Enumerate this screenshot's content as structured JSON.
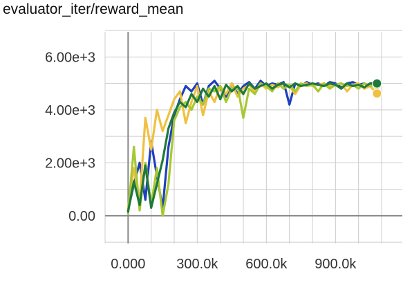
{
  "chart_data": {
    "type": "line",
    "title": "evaluator_iter/reward_mean",
    "xlabel": "",
    "ylabel": "",
    "xlim": [
      -100000,
      1190000
    ],
    "ylim": [
      -1050,
      6950
    ],
    "x_ticks": [
      0,
      300000,
      600000,
      900000
    ],
    "x_tick_labels": [
      "0.000",
      "300.0k",
      "600.0k",
      "900.0k"
    ],
    "y_ticks": [
      0,
      2000,
      4000,
      6000
    ],
    "y_tick_labels": [
      "0.00",
      "2.00e+3",
      "4.00e+3",
      "6.00e+3"
    ],
    "grid": true,
    "legend": "none",
    "series": [
      {
        "color": "#1f3fbf",
        "values": [
          [
            0,
            200
          ],
          [
            25000,
            1200
          ],
          [
            50000,
            2000
          ],
          [
            75000,
            600
          ],
          [
            100000,
            2800
          ],
          [
            125000,
            1500
          ],
          [
            150000,
            300
          ],
          [
            175000,
            2600
          ],
          [
            200000,
            3800
          ],
          [
            225000,
            4400
          ],
          [
            250000,
            4900
          ],
          [
            275000,
            4700
          ],
          [
            300000,
            5000
          ],
          [
            325000,
            4200
          ],
          [
            350000,
            4900
          ],
          [
            375000,
            5100
          ],
          [
            400000,
            4800
          ],
          [
            425000,
            4500
          ],
          [
            450000,
            5000
          ],
          [
            475000,
            4600
          ],
          [
            500000,
            4900
          ],
          [
            525000,
            5050
          ],
          [
            550000,
            4800
          ],
          [
            575000,
            5100
          ],
          [
            600000,
            4900
          ],
          [
            625000,
            5000
          ],
          [
            650000,
            4950
          ],
          [
            675000,
            5050
          ],
          [
            700000,
            4200
          ],
          [
            725000,
            5000
          ],
          [
            750000,
            4900
          ],
          [
            775000,
            5050
          ],
          [
            800000,
            4950
          ],
          [
            825000,
            5000
          ],
          [
            850000,
            4900
          ],
          [
            875000,
            5050
          ],
          [
            900000,
            5000
          ],
          [
            925000,
            4850
          ],
          [
            950000,
            5000
          ],
          [
            975000,
            5050
          ],
          [
            1000000,
            4950
          ],
          [
            1025000,
            5000
          ],
          [
            1050000,
            4900
          ],
          [
            1080000,
            5000
          ]
        ]
      },
      {
        "color": "#f0c040",
        "values": [
          [
            0,
            300
          ],
          [
            25000,
            1800
          ],
          [
            50000,
            500
          ],
          [
            75000,
            3700
          ],
          [
            100000,
            2500
          ],
          [
            125000,
            4000
          ],
          [
            150000,
            3200
          ],
          [
            175000,
            3800
          ],
          [
            200000,
            4400
          ],
          [
            225000,
            4700
          ],
          [
            250000,
            3500
          ],
          [
            275000,
            4300
          ],
          [
            300000,
            4900
          ],
          [
            325000,
            3800
          ],
          [
            350000,
            4700
          ],
          [
            375000,
            4300
          ],
          [
            400000,
            4900
          ],
          [
            425000,
            4600
          ],
          [
            450000,
            5000
          ],
          [
            475000,
            4500
          ],
          [
            500000,
            4800
          ],
          [
            525000,
            4950
          ],
          [
            550000,
            4700
          ],
          [
            575000,
            5000
          ],
          [
            600000,
            4800
          ],
          [
            625000,
            4950
          ],
          [
            650000,
            4850
          ],
          [
            675000,
            5000
          ],
          [
            700000,
            4900
          ],
          [
            725000,
            4600
          ],
          [
            750000,
            4950
          ],
          [
            775000,
            5000
          ],
          [
            800000,
            4900
          ],
          [
            825000,
            4950
          ],
          [
            850000,
            5000
          ],
          [
            875000,
            4900
          ],
          [
            900000,
            4950
          ],
          [
            925000,
            5000
          ],
          [
            950000,
            4700
          ],
          [
            975000,
            4950
          ],
          [
            1000000,
            5000
          ],
          [
            1025000,
            4800
          ],
          [
            1050000,
            4900
          ],
          [
            1080000,
            4620
          ]
        ]
      },
      {
        "color": "#a8c832",
        "values": [
          [
            0,
            100
          ],
          [
            25000,
            2600
          ],
          [
            50000,
            200
          ],
          [
            75000,
            2000
          ],
          [
            100000,
            400
          ],
          [
            125000,
            1800
          ],
          [
            150000,
            0
          ],
          [
            175000,
            1200
          ],
          [
            200000,
            3600
          ],
          [
            225000,
            4100
          ],
          [
            250000,
            4300
          ],
          [
            275000,
            4000
          ],
          [
            300000,
            4500
          ],
          [
            325000,
            4200
          ],
          [
            350000,
            4800
          ],
          [
            375000,
            4700
          ],
          [
            400000,
            4900
          ],
          [
            425000,
            4300
          ],
          [
            450000,
            4800
          ],
          [
            475000,
            4900
          ],
          [
            500000,
            3700
          ],
          [
            525000,
            4800
          ],
          [
            550000,
            4600
          ],
          [
            575000,
            5000
          ],
          [
            600000,
            4900
          ],
          [
            625000,
            4700
          ],
          [
            650000,
            5000
          ],
          [
            675000,
            4800
          ],
          [
            700000,
            4950
          ],
          [
            725000,
            4700
          ],
          [
            750000,
            5000
          ],
          [
            775000,
            4900
          ],
          [
            800000,
            4950
          ],
          [
            825000,
            4700
          ],
          [
            850000,
            5000
          ],
          [
            875000,
            4800
          ],
          [
            900000,
            4950
          ],
          [
            925000,
            5000
          ],
          [
            950000,
            4900
          ],
          [
            975000,
            4950
          ],
          [
            1000000,
            4800
          ],
          [
            1025000,
            5000
          ],
          [
            1050000,
            4900
          ],
          [
            1080000,
            4950
          ]
        ]
      },
      {
        "color": "#1e7a3a",
        "values": [
          [
            0,
            150
          ],
          [
            25000,
            1300
          ],
          [
            50000,
            400
          ],
          [
            75000,
            1900
          ],
          [
            100000,
            300
          ],
          [
            125000,
            1200
          ],
          [
            150000,
            2100
          ],
          [
            175000,
            3300
          ],
          [
            200000,
            3900
          ],
          [
            225000,
            4300
          ],
          [
            250000,
            4100
          ],
          [
            275000,
            4600
          ],
          [
            300000,
            4300
          ],
          [
            325000,
            4800
          ],
          [
            350000,
            4500
          ],
          [
            375000,
            4900
          ],
          [
            400000,
            4400
          ],
          [
            425000,
            4950
          ],
          [
            450000,
            4700
          ],
          [
            475000,
            4900
          ],
          [
            500000,
            4600
          ],
          [
            525000,
            5000
          ],
          [
            550000,
            4800
          ],
          [
            575000,
            4900
          ],
          [
            600000,
            5000
          ],
          [
            625000,
            4800
          ],
          [
            650000,
            4950
          ],
          [
            675000,
            5000
          ],
          [
            700000,
            4850
          ],
          [
            725000,
            5000
          ],
          [
            750000,
            4900
          ],
          [
            775000,
            4950
          ],
          [
            800000,
            5000
          ],
          [
            825000,
            4950
          ],
          [
            850000,
            4900
          ],
          [
            875000,
            5000
          ],
          [
            900000,
            4950
          ],
          [
            925000,
            4800
          ],
          [
            950000,
            5000
          ],
          [
            975000,
            4900
          ],
          [
            1000000,
            4950
          ],
          [
            1025000,
            4850
          ],
          [
            1050000,
            5000
          ],
          [
            1080000,
            5000
          ]
        ]
      }
    ]
  }
}
